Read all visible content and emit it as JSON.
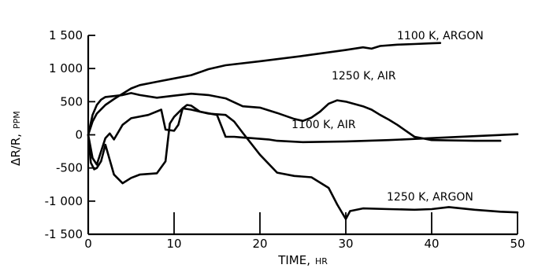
{
  "chart_data": {
    "type": "line",
    "title": "",
    "xlabel": "TIME,",
    "xlabel_unit": "HR",
    "ylabel": "ΔR/R,",
    "ylabel_unit": "PPM",
    "xlim": [
      0,
      50
    ],
    "ylim": [
      -1500,
      1500
    ],
    "x_ticks": [
      0,
      10,
      20,
      30,
      40,
      50
    ],
    "x_tick_labels": [
      "0",
      "10",
      "20",
      "30",
      "40",
      "50"
    ],
    "y_ticks": [
      1500,
      1000,
      500,
      0,
      -500,
      -1000,
      -1500
    ],
    "y_tick_labels": [
      "1 500",
      "1 000",
      "500",
      "0",
      "-500",
      "-1 000",
      "-1 500"
    ],
    "grid": false,
    "legend": "none",
    "series": [
      {
        "name": "1100 K, ARGON",
        "x": [
          0,
          0.5,
          1,
          2,
          3,
          4,
          5,
          6,
          8,
          10,
          12,
          14,
          16,
          20,
          25,
          30,
          32,
          33,
          34,
          36,
          38,
          40,
          41
        ],
        "y": [
          0,
          200,
          320,
          450,
          540,
          620,
          700,
          750,
          800,
          850,
          900,
          990,
          1050,
          1110,
          1190,
          1280,
          1320,
          1300,
          1340,
          1360,
          1370,
          1380,
          1385
        ]
      },
      {
        "name": "1250 K, AIR",
        "x": [
          0,
          0.5,
          1,
          1.5,
          2,
          4,
          5,
          6,
          8,
          10,
          12,
          14,
          16,
          18,
          20,
          22,
          24,
          25,
          26,
          27,
          28,
          29,
          30,
          32,
          33,
          34,
          35,
          36,
          37,
          38,
          40,
          45,
          48
        ],
        "y": [
          0,
          300,
          450,
          530,
          570,
          600,
          630,
          600,
          560,
          590,
          620,
          600,
          550,
          430,
          410,
          330,
          240,
          210,
          260,
          350,
          470,
          520,
          500,
          430,
          380,
          300,
          230,
          150,
          60,
          -30,
          -80,
          -90,
          -90
        ]
      },
      {
        "name": "1100 K, AIR",
        "x": [
          0,
          0.5,
          1,
          1.5,
          2,
          2.5,
          3,
          4,
          5,
          7,
          8.5,
          9,
          10,
          10.5,
          11,
          11.5,
          12,
          13,
          15,
          16,
          17,
          18,
          19,
          20,
          21,
          22,
          25,
          30,
          35,
          40,
          45,
          50
        ],
        "y": [
          0,
          -350,
          -450,
          -250,
          -50,
          20,
          -70,
          150,
          250,
          300,
          380,
          80,
          60,
          150,
          400,
          450,
          440,
          350,
          300,
          -30,
          -30,
          -40,
          -50,
          -60,
          -70,
          -90,
          -110,
          -100,
          -80,
          -50,
          -20,
          10
        ]
      },
      {
        "name": "1250 K, ARGON",
        "x": [
          0,
          0.3,
          0.7,
          1,
          1.5,
          2,
          3,
          4,
          5,
          6,
          8,
          9,
          9.5,
          10,
          11,
          12,
          14,
          16,
          17,
          18,
          20,
          22,
          24,
          26,
          28,
          29,
          30,
          30.5,
          32,
          35,
          38,
          40,
          42,
          45,
          48,
          50
        ],
        "y": [
          0,
          -420,
          -520,
          -500,
          -400,
          -150,
          -600,
          -730,
          -650,
          -600,
          -580,
          -400,
          170,
          270,
          400,
          380,
          320,
          300,
          200,
          30,
          -300,
          -570,
          -620,
          -640,
          -800,
          -1050,
          -1270,
          -1150,
          -1110,
          -1120,
          -1130,
          -1120,
          -1090,
          -1130,
          -1160,
          -1170
        ]
      }
    ],
    "annotations": [
      {
        "text": "1100 K, ARGON",
        "series": "1100 K, ARGON"
      },
      {
        "text": "1250 K, AIR",
        "series": "1250 K, AIR"
      },
      {
        "text": "1100 K, AIR",
        "series": "1100 K, AIR"
      },
      {
        "text": "1250 K, ARGON",
        "series": "1250 K, ARGON"
      }
    ]
  }
}
